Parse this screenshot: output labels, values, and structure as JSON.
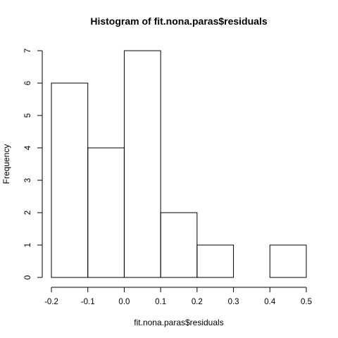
{
  "chart_data": {
    "type": "bar",
    "subtype": "histogram",
    "title": "Histogram of fit.nona.paras$residuals",
    "xlabel": "fit.nona.paras$residuals",
    "ylabel": "Frequency",
    "bin_edges": [
      -0.2,
      -0.1,
      0.0,
      0.1,
      0.2,
      0.3,
      0.4,
      0.5
    ],
    "categories": [
      "-0.2–-0.1",
      "-0.1–0.0",
      "0.0–0.1",
      "0.1–0.2",
      "0.2–0.3",
      "0.3–0.4",
      "0.4–0.5"
    ],
    "values": [
      6,
      4,
      7,
      2,
      1,
      0,
      1
    ],
    "xlim": [
      -0.2,
      0.5
    ],
    "ylim": [
      0,
      7
    ],
    "x_ticks": [
      -0.2,
      -0.1,
      0.0,
      0.1,
      0.2,
      0.3,
      0.4,
      0.5
    ],
    "x_tick_labels": [
      "-0.2",
      "-0.1",
      "0.0",
      "0.1",
      "0.2",
      "0.3",
      "0.4",
      "0.5"
    ],
    "y_ticks": [
      0,
      1,
      2,
      3,
      4,
      5,
      6,
      7
    ],
    "y_tick_labels": [
      "0",
      "1",
      "2",
      "3",
      "4",
      "5",
      "6",
      "7"
    ],
    "grid": false,
    "legend": "none",
    "colors": {
      "bar_fill": "#ffffff",
      "bar_stroke": "#000000",
      "background": "#ffffff"
    }
  }
}
